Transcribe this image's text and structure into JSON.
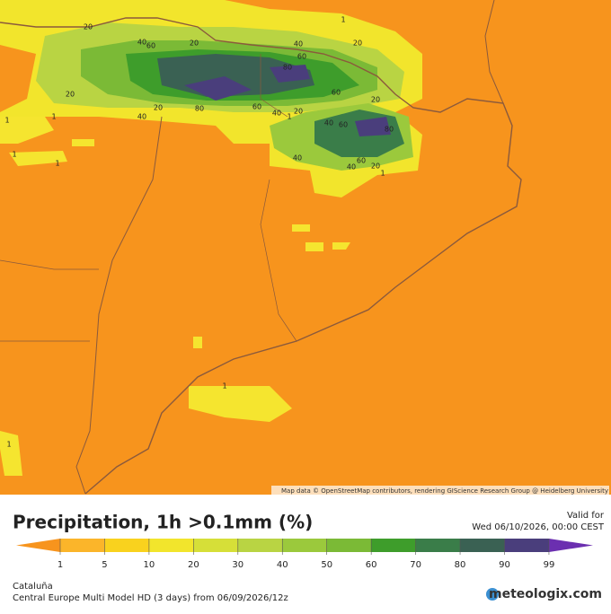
{
  "map": {
    "attribution": "Map data © OpenStreetMap contributors, rendering GIScience Research Group @ Heidelberg University",
    "contour_labels": [
      "20",
      "40",
      "60",
      "20",
      "40",
      "20",
      "1",
      "60",
      "80",
      "20",
      "1",
      "40",
      "20",
      "80",
      "60",
      "40",
      "1",
      "20",
      "60",
      "20",
      "40",
      "60",
      "80",
      "40",
      "60",
      "20",
      "40",
      "1",
      "1",
      "1",
      "1",
      "1",
      "1"
    ]
  },
  "header": {
    "title": "Precipitation, 1h >0.1mm (%)",
    "valid_label": "Valid for",
    "valid_time": "Wed 06/10/2026, 00:00 CEST"
  },
  "legend": {
    "ticks": [
      1,
      5,
      10,
      20,
      30,
      40,
      50,
      60,
      70,
      80,
      90,
      99
    ],
    "colors": [
      "#f7941d",
      "#fbb52a",
      "#f9d21e",
      "#f2e52c",
      "#d6df38",
      "#b9d443",
      "#9bc93c",
      "#7bba36",
      "#3e9d2b",
      "#3a7d49",
      "#3a6153",
      "#4a3e7c",
      "#6b2fb0"
    ]
  },
  "footer": {
    "region": "Cataluña",
    "model": "Central Europe Multi Model HD (3 days) from 06/09/2026/12z",
    "brand": "meteologix.com"
  }
}
